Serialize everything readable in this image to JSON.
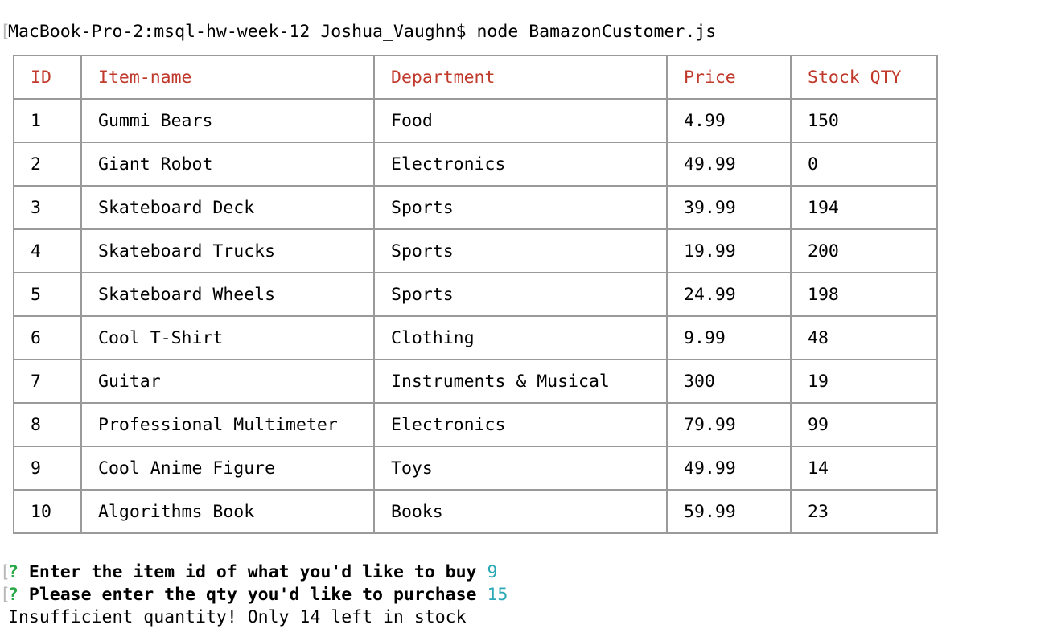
{
  "terminal": {
    "command_line": "MacBook-Pro-2:msql-hw-week-12 Joshua_Vaughn$ node BamazonCustomer.js",
    "bracket": "["
  },
  "table": {
    "headers": [
      "ID",
      "Item-name",
      "Department",
      "Price",
      "Stock QTY"
    ],
    "rows": [
      [
        "1",
        "Gummi Bears",
        "Food",
        "4.99",
        "150"
      ],
      [
        "2",
        "Giant Robot",
        "Electronics",
        "49.99",
        "0"
      ],
      [
        "3",
        "Skateboard Deck",
        "Sports",
        "39.99",
        "194"
      ],
      [
        "4",
        "Skateboard Trucks",
        "Sports",
        "19.99",
        "200"
      ],
      [
        "5",
        "Skateboard Wheels",
        "Sports",
        "24.99",
        "198"
      ],
      [
        "6",
        "Cool T-Shirt",
        "Clothing",
        "9.99",
        "48"
      ],
      [
        "7",
        "Guitar",
        "Instruments & Musical",
        "300",
        "19"
      ],
      [
        "8",
        "Professional Multimeter",
        "Electronics",
        "79.99",
        "99"
      ],
      [
        "9",
        "Cool Anime Figure",
        "Toys",
        "49.99",
        "14"
      ],
      [
        "10",
        "Algorithms Book",
        "Books",
        "59.99",
        "23"
      ]
    ]
  },
  "prompts": [
    {
      "mark": "?",
      "question": "Enter the item id of what you'd like to buy",
      "answer": "9"
    },
    {
      "mark": "?",
      "question": "Please enter the qty you'd like to purchase",
      "answer": "15"
    }
  ],
  "output": "Insufficient quantity! Only 14 left in stock",
  "colors": {
    "header_text": "#c0392b",
    "question_mark": "#28a745",
    "answer": "#2aa8b6",
    "table_border": "#9a9a9a"
  }
}
